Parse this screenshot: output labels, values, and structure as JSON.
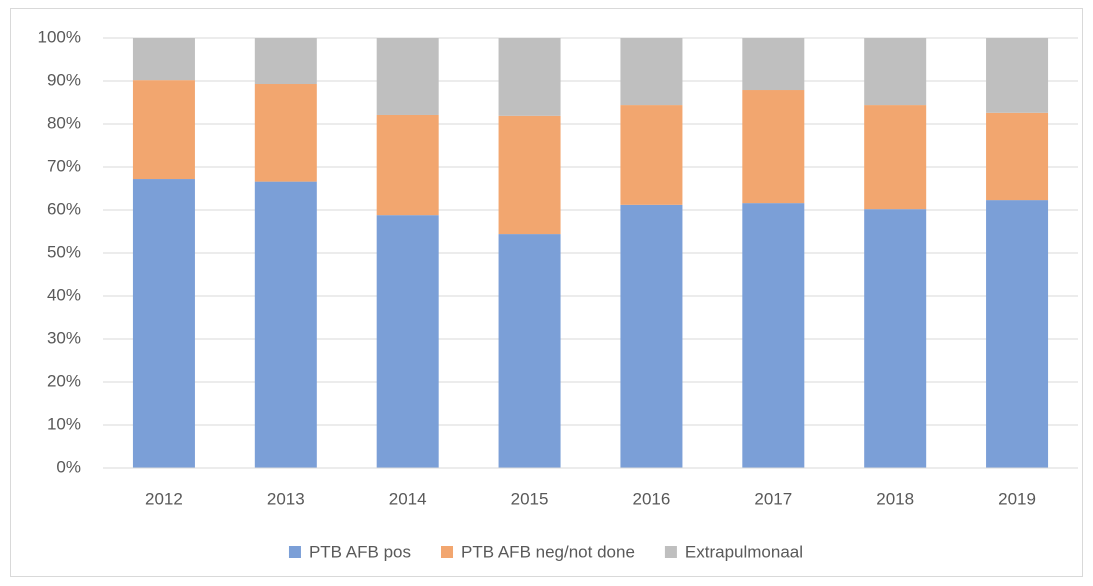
{
  "chart_data": {
    "type": "stacked_bar",
    "categories": [
      "2012",
      "2013",
      "2014",
      "2015",
      "2016",
      "2017",
      "2018",
      "2019"
    ],
    "series": [
      {
        "name": "PTB AFB pos",
        "color": "#7b9fd7",
        "values": [
          67.2,
          66.6,
          58.8,
          54.4,
          61.2,
          61.6,
          60.2,
          62.3
        ]
      },
      {
        "name": "PTB AFB neg/not done",
        "color": "#f2a66f",
        "values": [
          23.0,
          22.7,
          23.3,
          27.5,
          23.2,
          26.3,
          24.2,
          20.3
        ]
      },
      {
        "name": "Extrapulmonaal",
        "color": "#bfbfbf",
        "values": [
          9.8,
          10.7,
          17.9,
          18.1,
          15.6,
          12.1,
          15.6,
          17.4
        ]
      }
    ],
    "ylim": [
      0,
      100
    ],
    "yticks": [
      {
        "value": 0,
        "label": "0%"
      },
      {
        "value": 10,
        "label": "10%"
      },
      {
        "value": 20,
        "label": "20%"
      },
      {
        "value": 30,
        "label": "30%"
      },
      {
        "value": 40,
        "label": "40%"
      },
      {
        "value": 50,
        "label": "50%"
      },
      {
        "value": 60,
        "label": "60%"
      },
      {
        "value": 70,
        "label": "70%"
      },
      {
        "value": 80,
        "label": "80%"
      },
      {
        "value": 90,
        "label": "90%"
      },
      {
        "value": 100,
        "label": "100%"
      }
    ],
    "grid": true,
    "legend": "bottom"
  }
}
